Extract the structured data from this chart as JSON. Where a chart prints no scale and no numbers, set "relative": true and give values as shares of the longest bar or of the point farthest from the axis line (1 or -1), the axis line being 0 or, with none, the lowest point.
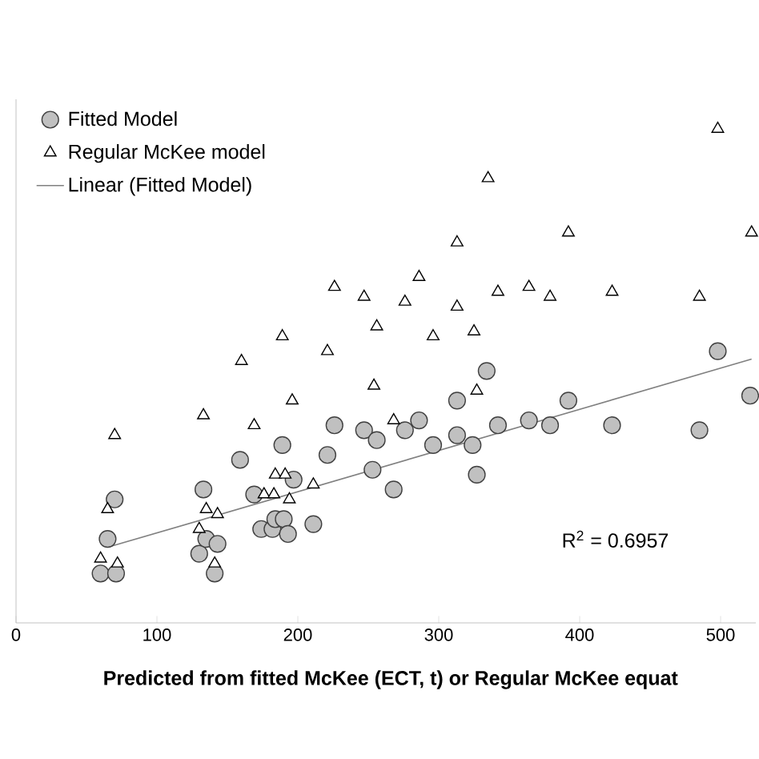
{
  "chart_data": {
    "type": "scatter",
    "xlabel": "Predicted from fitted McKee  (ECT, t) or Regular McKee equat",
    "xlim": [
      0,
      525
    ],
    "xticks": [
      0,
      100,
      200,
      300,
      400,
      500
    ],
    "relative": true,
    "tick_labels": "x",
    "legend": "top left",
    "annotations": [
      "R$^{2}$ = 0.6957"
    ],
    "series": [
      {
        "name": "Fitted Model",
        "marker": "circle",
        "color": "#c0c0c0",
        "x": [
          60,
          71,
          65,
          70,
          130,
          135,
          143,
          141,
          133,
          159,
          169,
          174,
          182,
          184,
          190,
          193,
          197,
          189,
          211,
          221,
          226,
          247,
          256,
          253,
          268,
          276,
          286,
          296,
          313,
          313,
          324,
          327,
          334,
          342,
          364,
          379,
          392,
          423,
          485,
          498,
          521
        ],
        "values": [
          0.1,
          0.1,
          0.17,
          0.25,
          0.14,
          0.17,
          0.16,
          0.1,
          0.27,
          0.33,
          0.26,
          0.19,
          0.19,
          0.21,
          0.21,
          0.18,
          0.29,
          0.36,
          0.2,
          0.34,
          0.4,
          0.39,
          0.37,
          0.31,
          0.27,
          0.39,
          0.41,
          0.36,
          0.45,
          0.38,
          0.36,
          0.3,
          0.51,
          0.4,
          0.41,
          0.4,
          0.45,
          0.4,
          0.39,
          0.55,
          0.46
        ]
      },
      {
        "name": "Regular McKee model",
        "marker": "triangle",
        "color": "#000000",
        "x": [
          60,
          72,
          65,
          70,
          130,
          135,
          143,
          141,
          133,
          160,
          169,
          176,
          183,
          184,
          191,
          194,
          189,
          196,
          211,
          221,
          226,
          247,
          256,
          254,
          268,
          276,
          286,
          296,
          313,
          313,
          325,
          327,
          335,
          342,
          364,
          379,
          392,
          423,
          485,
          498,
          522
        ],
        "values": [
          0.13,
          0.12,
          0.23,
          0.38,
          0.19,
          0.23,
          0.22,
          0.12,
          0.42,
          0.53,
          0.4,
          0.26,
          0.26,
          0.3,
          0.3,
          0.25,
          0.58,
          0.45,
          0.28,
          0.55,
          0.68,
          0.66,
          0.6,
          0.48,
          0.41,
          0.65,
          0.7,
          0.58,
          0.77,
          0.64,
          0.59,
          0.47,
          0.9,
          0.67,
          0.68,
          0.66,
          0.79,
          0.67,
          0.66,
          1.0,
          0.79
        ]
      },
      {
        "name": "Linear (Fitted Model)",
        "type": "line",
        "marker": "none",
        "color": "#808080",
        "x": [
          65,
          522
        ],
        "values": [
          0.153,
          0.534
        ]
      }
    ]
  }
}
